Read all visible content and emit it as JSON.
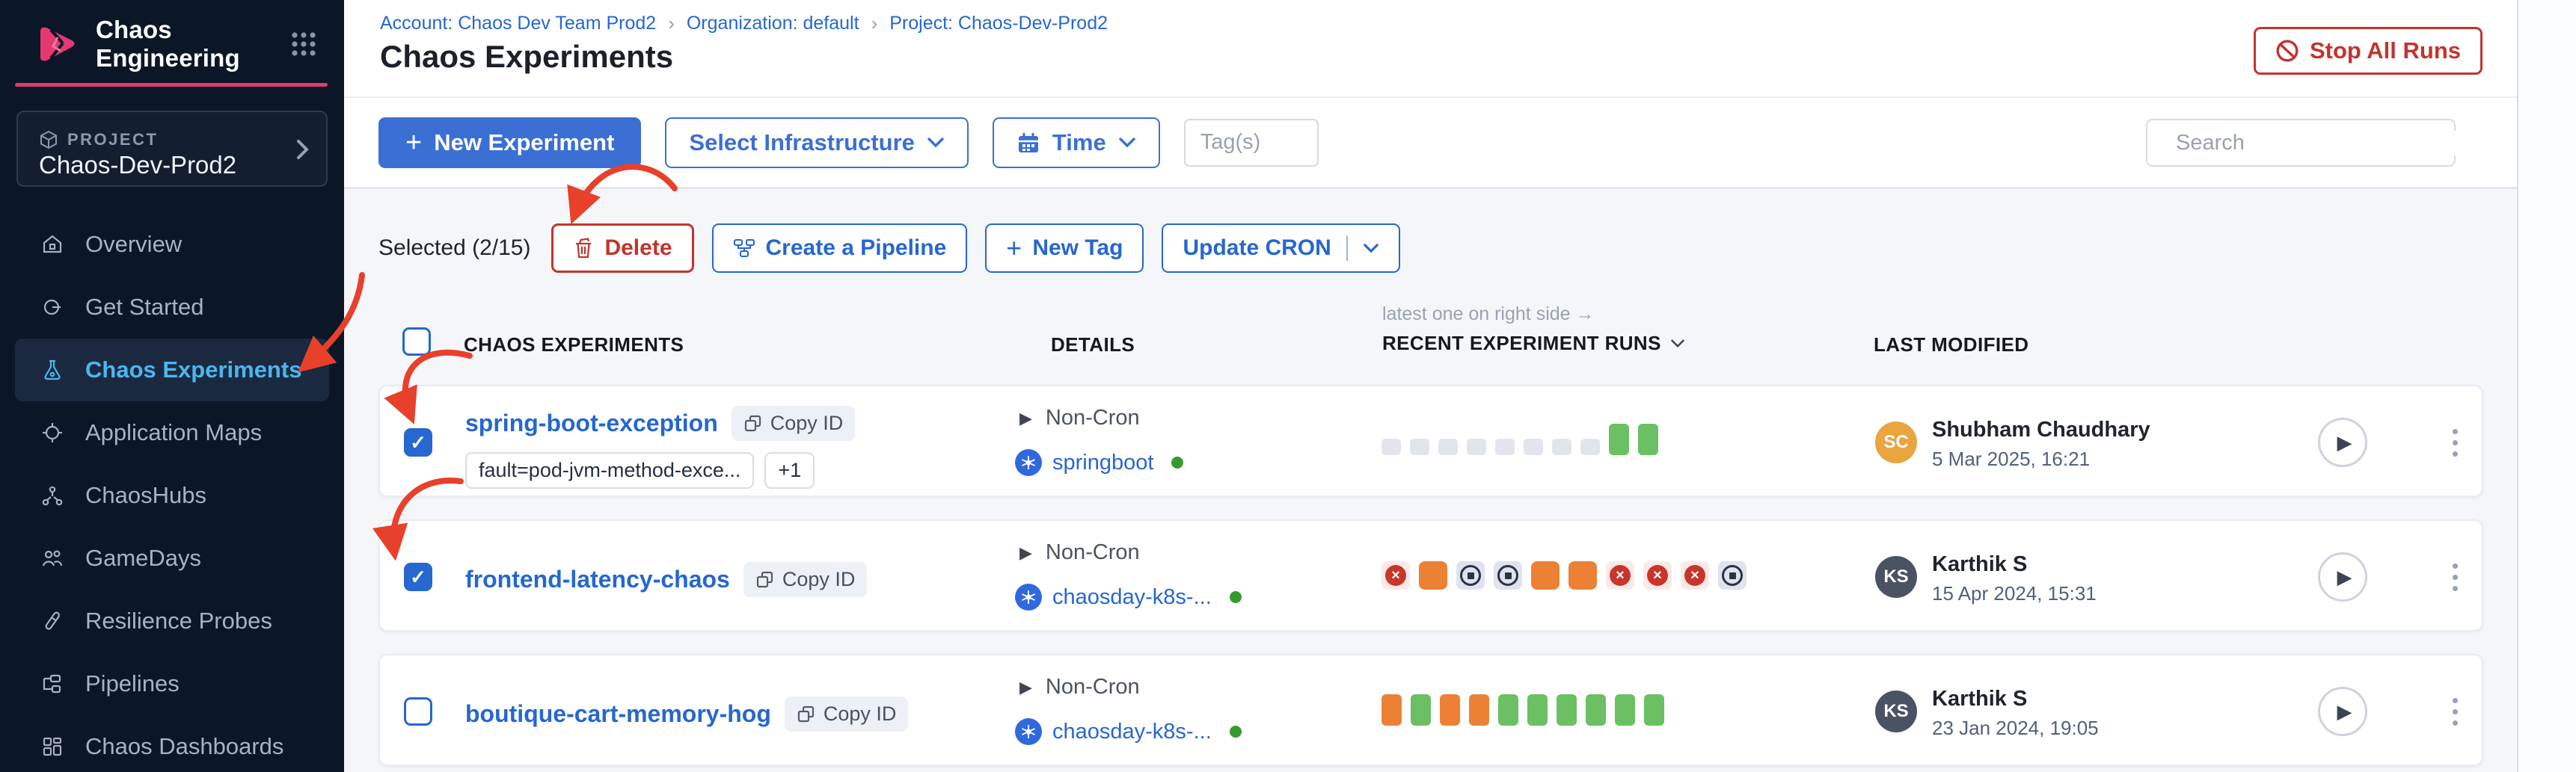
{
  "colors": {
    "accent_pink": "#e23a70",
    "primary_blue": "#3b6fd4",
    "link_blue": "#2667d0",
    "danger_red": "#c3342c",
    "success_green": "#6ac062",
    "warning_orange": "#ec8136",
    "annotation_red": "#e8402a",
    "active_nav_blue": "#4bb6ef"
  },
  "sidebar": {
    "app_title": "Chaos Engineering",
    "project": {
      "label": "PROJECT",
      "name": "Chaos-Dev-Prod2"
    },
    "nav": [
      {
        "label": "Overview"
      },
      {
        "label": "Get Started"
      },
      {
        "label": "Chaos Experiments"
      },
      {
        "label": "Application Maps"
      },
      {
        "label": "ChaosHubs"
      },
      {
        "label": "GameDays"
      },
      {
        "label": "Resilience Probes"
      },
      {
        "label": "Pipelines"
      },
      {
        "label": "Chaos Dashboards"
      }
    ]
  },
  "header": {
    "breadcrumbs": [
      {
        "label": "Account: Chaos Dev Team Prod2"
      },
      {
        "label": "Organization: default"
      },
      {
        "label": "Project: Chaos-Dev-Prod2"
      }
    ],
    "title": "Chaos Experiments",
    "stop_all_runs_label": "Stop All Runs"
  },
  "toolbar": {
    "new_experiment_label": "New Experiment",
    "select_infrastructure_label": "Select Infrastructure",
    "time_label": "Time",
    "tags_placeholder": "Tag(s)",
    "search_placeholder": "Search"
  },
  "selection_bar": {
    "selected_label": "Selected (2/15)",
    "delete_label": "Delete",
    "create_pipeline_label": "Create a Pipeline",
    "new_tag_label": "New Tag",
    "update_cron_label": "Update CRON"
  },
  "table": {
    "annotation": "latest one on right side →",
    "columns": {
      "experiments": "CHAOS EXPERIMENTS",
      "details": "DETAILS",
      "runs": "RECENT EXPERIMENT RUNS",
      "last_modified": "LAST MODIFIED"
    },
    "rows": [
      {
        "name": "spring-boot-exception",
        "copy_id_label": "Copy ID",
        "checked": true,
        "tags": [
          "fault=pod-jvm-method-exce...",
          "+1"
        ],
        "schedule": "Non-Cron",
        "infrastructure": "springboot",
        "runs": [
          "empty",
          "empty",
          "empty",
          "empty",
          "empty",
          "empty",
          "empty",
          "empty",
          "passed",
          "passed"
        ],
        "modified_by": "Shubham Chaudhary",
        "modified_initials": "SC",
        "modified_date": "5 Mar 2025, 16:21",
        "avatar_color": "#eaa440"
      },
      {
        "name": "frontend-latency-chaos",
        "copy_id_label": "Copy ID",
        "checked": true,
        "tags": [],
        "schedule": "Non-Cron",
        "infrastructure": "chaosday-k8s-...",
        "runs": [
          "failed",
          "warning",
          "stopped",
          "stopped",
          "warning",
          "warning",
          "failed",
          "failed",
          "failed",
          "stopped"
        ],
        "modified_by": "Karthik S",
        "modified_initials": "KS",
        "modified_date": "15 Apr 2024, 15:31",
        "avatar_color": "#4b5263"
      },
      {
        "name": "boutique-cart-memory-hog",
        "copy_id_label": "Copy ID",
        "checked": false,
        "tags": [],
        "schedule": "Non-Cron",
        "infrastructure": "chaosday-k8s-...",
        "runs": [
          "warning",
          "passed",
          "warning",
          "warning",
          "passed",
          "passed",
          "passed",
          "passed",
          "passed",
          "passed"
        ],
        "modified_by": "Karthik S",
        "modified_initials": "KS",
        "modified_date": "23 Jan 2024, 19:05",
        "avatar_color": "#4b5263"
      }
    ]
  }
}
